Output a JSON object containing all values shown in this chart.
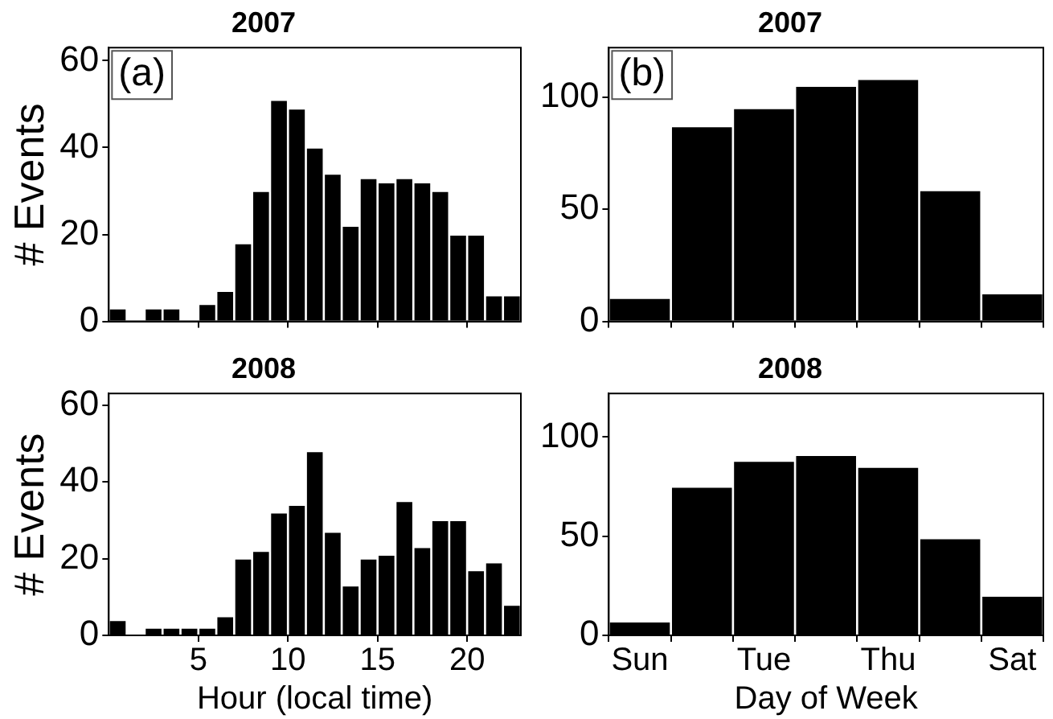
{
  "chart_data": [
    {
      "type": "histogram",
      "title": "2007",
      "ylabel": "# Events",
      "annotations": [
        "(a)"
      ],
      "bins": [
        0,
        1,
        2,
        3,
        4,
        5,
        6,
        7,
        8,
        9,
        10,
        11,
        12,
        13,
        14,
        15,
        16,
        17,
        18,
        19,
        20,
        21,
        22,
        23
      ],
      "values": [
        3,
        0,
        3,
        3,
        0,
        4,
        7,
        18,
        30,
        51,
        49,
        40,
        34,
        22,
        33,
        32,
        33,
        32,
        30,
        20,
        20,
        6,
        6
      ],
      "color": "#000000",
      "xlim": [
        0,
        23
      ],
      "xticks": [
        5,
        10,
        15,
        20
      ],
      "ylim": [
        0,
        63
      ],
      "yticks": [
        0,
        20,
        40,
        60
      ],
      "grid": false,
      "legend": false,
      "tick_labels": "y"
    },
    {
      "type": "bar",
      "title": "2007",
      "annotations": [
        "(b)"
      ],
      "categories": [
        null,
        null,
        null,
        null,
        null,
        null,
        null
      ],
      "values": [
        10.5,
        87,
        95,
        105,
        108,
        58.5,
        12.5
      ],
      "color": "#000000",
      "ylim": [
        0,
        122
      ],
      "yticks": [
        0,
        50,
        100
      ],
      "grid": false,
      "legend": false,
      "tick_labels": "y"
    },
    {
      "type": "histogram",
      "title": "2008",
      "xlabel": "Hour (local time)",
      "ylabel": "# Events",
      "bins": [
        0,
        1,
        2,
        3,
        4,
        5,
        6,
        7,
        8,
        9,
        10,
        11,
        12,
        13,
        14,
        15,
        16,
        17,
        18,
        19,
        20,
        21,
        22,
        23
      ],
      "values": [
        4,
        0,
        2,
        2,
        2,
        2,
        5,
        20,
        22,
        32,
        34,
        48,
        27,
        13,
        20,
        21,
        35,
        23,
        30,
        30,
        17,
        19,
        8
      ],
      "color": "#000000",
      "xlim": [
        0,
        23
      ],
      "xticks": [
        5,
        10,
        15,
        20
      ],
      "ylim": [
        0,
        63
      ],
      "yticks": [
        0,
        20,
        40,
        60
      ],
      "grid": false,
      "legend": false
    },
    {
      "type": "bar",
      "title": "2008",
      "xlabel": "Day of Week",
      "categories": [
        "Sun",
        null,
        "Tue",
        null,
        "Thu",
        null,
        "Sat"
      ],
      "values": [
        7,
        75,
        88,
        91,
        85,
        49,
        20
      ],
      "color": "#000000",
      "ylim": [
        0,
        122
      ],
      "yticks": [
        0,
        50,
        100
      ],
      "grid": false,
      "legend": false
    }
  ]
}
